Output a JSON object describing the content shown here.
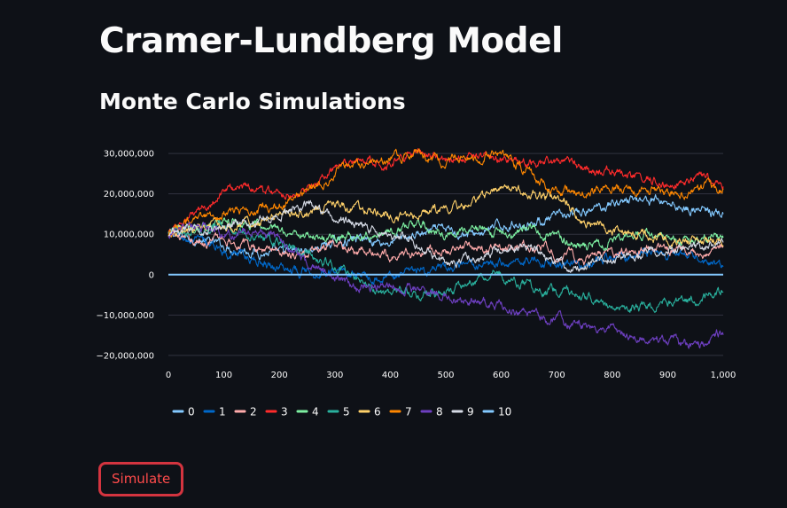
{
  "page": {
    "title": "Cramer-Lundberg Model",
    "subtitle": "Monte Carlo Simulations"
  },
  "button": {
    "label": "Simulate"
  },
  "chart_data": {
    "type": "line",
    "x_ticks": [
      0,
      100,
      200,
      300,
      400,
      500,
      600,
      700,
      800,
      900,
      1000
    ],
    "x_tick_labels": [
      "0",
      "100",
      "200",
      "300",
      "400",
      "500",
      "600",
      "700",
      "800",
      "900",
      "1,000"
    ],
    "y_ticks": [
      -20000000,
      -10000000,
      0,
      10000000,
      20000000,
      30000000
    ],
    "y_tick_labels": [
      "−20,000,000",
      "−10,000,000",
      "0",
      "10,000,000",
      "20,000,000",
      "30,000,000"
    ],
    "xlim": [
      0,
      1000
    ],
    "ylim": [
      -22000000,
      32000000
    ],
    "grid": "horizontal",
    "legend_position": "bottom",
    "series": [
      {
        "name": "0",
        "color": "#83c9ff",
        "points": [
          [
            0,
            10000000
          ],
          [
            50,
            9000000
          ],
          [
            100,
            7000000
          ],
          [
            150,
            6000000
          ],
          [
            200,
            5000000
          ],
          [
            250,
            6000000
          ],
          [
            300,
            8000000
          ],
          [
            350,
            9000000
          ],
          [
            400,
            8000000
          ],
          [
            450,
            10000000
          ],
          [
            500,
            11000000
          ],
          [
            550,
            10000000
          ],
          [
            600,
            12000000
          ],
          [
            650,
            13000000
          ],
          [
            700,
            14000000
          ],
          [
            750,
            15000000
          ],
          [
            800,
            18000000
          ],
          [
            850,
            19000000
          ],
          [
            900,
            18000000
          ],
          [
            950,
            16000000
          ],
          [
            1000,
            15000000
          ]
        ]
      },
      {
        "name": "1",
        "color": "#0068c9",
        "points": [
          [
            0,
            10000000
          ],
          [
            50,
            8000000
          ],
          [
            100,
            6000000
          ],
          [
            150,
            4000000
          ],
          [
            200,
            2000000
          ],
          [
            250,
            1000000
          ],
          [
            300,
            1500000
          ],
          [
            350,
            0
          ],
          [
            400,
            -500000
          ],
          [
            450,
            500000
          ],
          [
            500,
            1000000
          ],
          [
            550,
            2000000
          ],
          [
            600,
            3000000
          ],
          [
            650,
            4000000
          ],
          [
            700,
            3000000
          ],
          [
            750,
            2500000
          ],
          [
            800,
            4000000
          ],
          [
            850,
            6000000
          ],
          [
            900,
            5000000
          ],
          [
            950,
            4000000
          ],
          [
            1000,
            1000000
          ]
        ]
      },
      {
        "name": "2",
        "color": "#ffabab",
        "points": [
          [
            0,
            10000000
          ],
          [
            50,
            8000000
          ],
          [
            100,
            9000000
          ],
          [
            150,
            7000000
          ],
          [
            200,
            6000000
          ],
          [
            250,
            5000000
          ],
          [
            300,
            7000000
          ],
          [
            350,
            6000000
          ],
          [
            400,
            5000000
          ],
          [
            450,
            5500000
          ],
          [
            500,
            6000000
          ],
          [
            550,
            7000000
          ],
          [
            600,
            6000000
          ],
          [
            650,
            7000000
          ],
          [
            700,
            5000000
          ],
          [
            750,
            4000000
          ],
          [
            800,
            5000000
          ],
          [
            850,
            6000000
          ],
          [
            900,
            6500000
          ],
          [
            950,
            5000000
          ],
          [
            1000,
            7000000
          ]
        ]
      },
      {
        "name": "3",
        "color": "#ff2b2b",
        "points": [
          [
            0,
            10000000
          ],
          [
            50,
            15000000
          ],
          [
            100,
            21000000
          ],
          [
            150,
            22000000
          ],
          [
            200,
            20000000
          ],
          [
            250,
            21000000
          ],
          [
            300,
            26000000
          ],
          [
            350,
            28000000
          ],
          [
            400,
            28000000
          ],
          [
            450,
            31000000
          ],
          [
            500,
            29000000
          ],
          [
            550,
            30000000
          ],
          [
            600,
            29000000
          ],
          [
            650,
            27000000
          ],
          [
            700,
            28000000
          ],
          [
            750,
            26000000
          ],
          [
            800,
            25000000
          ],
          [
            850,
            24000000
          ],
          [
            900,
            23000000
          ],
          [
            950,
            24000000
          ],
          [
            1000,
            22500000
          ]
        ]
      },
      {
        "name": "4",
        "color": "#7defa1",
        "points": [
          [
            0,
            10000000
          ],
          [
            50,
            12000000
          ],
          [
            100,
            14000000
          ],
          [
            150,
            12000000
          ],
          [
            200,
            11000000
          ],
          [
            250,
            10000000
          ],
          [
            300,
            9000000
          ],
          [
            350,
            10000000
          ],
          [
            400,
            11000000
          ],
          [
            450,
            12000000
          ],
          [
            500,
            10000000
          ],
          [
            550,
            11000000
          ],
          [
            600,
            10000000
          ],
          [
            650,
            12000000
          ],
          [
            700,
            9000000
          ],
          [
            750,
            7000000
          ],
          [
            800,
            8000000
          ],
          [
            850,
            10000000
          ],
          [
            900,
            9000000
          ],
          [
            950,
            8000000
          ],
          [
            1000,
            10000000
          ]
        ]
      },
      {
        "name": "5",
        "color": "#29b09d",
        "points": [
          [
            0,
            10000000
          ],
          [
            50,
            11000000
          ],
          [
            100,
            12000000
          ],
          [
            150,
            10000000
          ],
          [
            200,
            8000000
          ],
          [
            250,
            5000000
          ],
          [
            300,
            2000000
          ],
          [
            350,
            -2000000
          ],
          [
            400,
            -5000000
          ],
          [
            450,
            -4000000
          ],
          [
            500,
            -5000000
          ],
          [
            550,
            -2000000
          ],
          [
            600,
            0
          ],
          [
            650,
            -3000000
          ],
          [
            700,
            -4000000
          ],
          [
            750,
            -5000000
          ],
          [
            800,
            -7000000
          ],
          [
            850,
            -8000000
          ],
          [
            900,
            -7000000
          ],
          [
            950,
            -6000000
          ],
          [
            1000,
            -4000000
          ]
        ]
      },
      {
        "name": "6",
        "color": "#ffd16a",
        "points": [
          [
            0,
            10000000
          ],
          [
            50,
            11000000
          ],
          [
            100,
            12000000
          ],
          [
            150,
            13000000
          ],
          [
            200,
            15000000
          ],
          [
            250,
            16000000
          ],
          [
            300,
            18000000
          ],
          [
            350,
            16000000
          ],
          [
            400,
            14000000
          ],
          [
            450,
            15000000
          ],
          [
            500,
            16000000
          ],
          [
            550,
            18000000
          ],
          [
            600,
            21000000
          ],
          [
            650,
            20000000
          ],
          [
            700,
            19000000
          ],
          [
            750,
            13000000
          ],
          [
            800,
            11000000
          ],
          [
            850,
            10000000
          ],
          [
            900,
            9000000
          ],
          [
            950,
            8500000
          ],
          [
            1000,
            8000000
          ]
        ]
      },
      {
        "name": "7",
        "color": "#ff8700",
        "points": [
          [
            0,
            10000000
          ],
          [
            50,
            13000000
          ],
          [
            100,
            15000000
          ],
          [
            150,
            16000000
          ],
          [
            200,
            17000000
          ],
          [
            250,
            20000000
          ],
          [
            300,
            26000000
          ],
          [
            350,
            28000000
          ],
          [
            400,
            29000000
          ],
          [
            450,
            30000000
          ],
          [
            500,
            28000000
          ],
          [
            550,
            29000000
          ],
          [
            600,
            30000000
          ],
          [
            650,
            25000000
          ],
          [
            700,
            21000000
          ],
          [
            750,
            20000000
          ],
          [
            800,
            22000000
          ],
          [
            850,
            21000000
          ],
          [
            900,
            20000000
          ],
          [
            950,
            21500000
          ],
          [
            1000,
            21000000
          ]
        ]
      },
      {
        "name": "8",
        "color": "#6d3fc0",
        "points": [
          [
            0,
            10000000
          ],
          [
            50,
            12000000
          ],
          [
            100,
            10000000
          ],
          [
            150,
            11000000
          ],
          [
            200,
            9000000
          ],
          [
            250,
            3000000
          ],
          [
            300,
            -1000000
          ],
          [
            350,
            -3000000
          ],
          [
            400,
            -2000000
          ],
          [
            450,
            -4000000
          ],
          [
            500,
            -6000000
          ],
          [
            550,
            -7000000
          ],
          [
            600,
            -8000000
          ],
          [
            650,
            -10000000
          ],
          [
            700,
            -11000000
          ],
          [
            750,
            -13000000
          ],
          [
            800,
            -14000000
          ],
          [
            850,
            -15000000
          ],
          [
            900,
            -16000000
          ],
          [
            950,
            -18000000
          ],
          [
            1000,
            -14000000
          ]
        ]
      },
      {
        "name": "9",
        "color": "#d5dae5",
        "points": [
          [
            0,
            10000000
          ],
          [
            50,
            11000000
          ],
          [
            100,
            12000000
          ],
          [
            150,
            13000000
          ],
          [
            200,
            15000000
          ],
          [
            250,
            17000000
          ],
          [
            300,
            14000000
          ],
          [
            350,
            12000000
          ],
          [
            400,
            10000000
          ],
          [
            450,
            7000000
          ],
          [
            500,
            3000000
          ],
          [
            550,
            4000000
          ],
          [
            600,
            6000000
          ],
          [
            650,
            7000000
          ],
          [
            700,
            3000000
          ],
          [
            750,
            2000000
          ],
          [
            800,
            4000000
          ],
          [
            850,
            5000000
          ],
          [
            900,
            5500000
          ],
          [
            950,
            6500000
          ],
          [
            1000,
            8000000
          ]
        ]
      },
      {
        "name": "10",
        "color": "#83c9ff",
        "points": [
          [
            0,
            0
          ],
          [
            1000,
            0
          ]
        ]
      }
    ]
  }
}
